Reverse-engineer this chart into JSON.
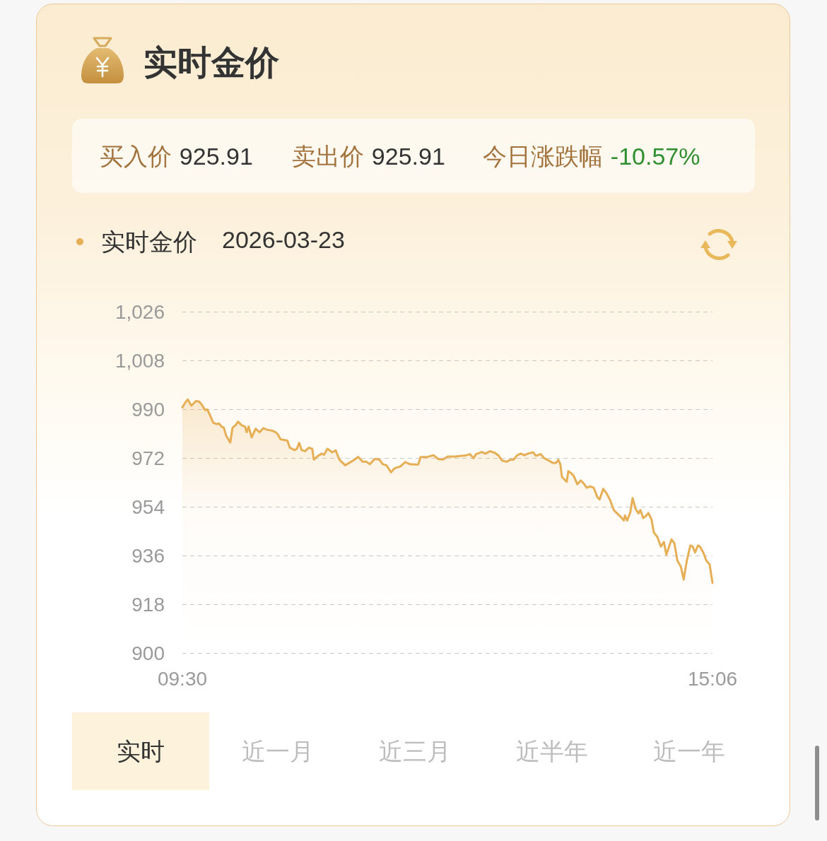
{
  "chart_data": {
    "type": "area",
    "title": "实时金价",
    "subtitle": "2026-03-23",
    "annotations": [
      "买入价 925.91",
      "卖出价 925.91",
      "今日涨跌幅 -10.57%",
      "实时",
      "近一月",
      "近三月",
      "近半年",
      "近一年"
    ],
    "x": [
      9.5,
      9.528,
      9.557,
      9.595,
      9.644,
      9.677,
      9.709,
      9.739,
      9.764,
      9.789,
      9.826,
      9.864,
      9.888,
      9.913,
      9.938,
      9.963,
      10.006,
      10.03,
      10.062,
      10.088,
      10.125,
      10.162,
      10.18,
      10.2,
      10.232,
      10.274,
      10.316,
      10.356,
      10.398,
      10.448,
      10.486,
      10.51,
      10.536,
      10.61,
      10.635,
      10.685,
      10.71,
      10.734,
      10.76,
      10.797,
      10.834,
      10.872,
      10.889,
      10.934,
      10.971,
      10.996,
      11.033,
      11.083,
      11.12,
      11.158,
      11.22,
      11.282,
      11.32,
      11.357,
      11.406,
      11.444,
      11.481,
      11.531,
      11.581,
      11.618,
      11.656,
      11.705,
      11.742,
      11.805,
      11.854,
      11.904,
      11.954,
      11.992,
      12.016,
      12.078,
      12.153,
      12.203,
      12.253,
      12.302,
      12.377,
      12.452,
      12.502,
      12.539,
      12.576,
      12.601,
      12.664,
      12.701,
      12.75,
      12.8,
      12.838,
      12.875,
      12.925,
      12.962,
      13.0,
      13.037,
      13.074,
      13.112,
      13.149,
      13.204,
      13.236,
      13.286,
      13.323,
      13.373,
      13.41,
      13.448,
      13.472,
      13.493,
      13.51,
      13.534,
      13.56,
      13.577,
      13.609,
      13.634,
      13.672,
      13.709,
      13.746,
      13.771,
      13.808,
      13.846,
      13.883,
      13.908,
      13.945,
      13.982,
      14.02,
      14.057,
      14.094,
      14.132,
      14.164,
      14.176,
      14.199,
      14.232,
      14.256,
      14.288,
      14.318,
      14.338,
      14.368,
      14.398,
      14.423,
      14.456,
      14.48,
      14.518,
      14.555,
      14.587,
      14.612,
      14.642,
      14.667,
      14.697,
      14.729,
      14.766,
      14.796,
      14.829,
      14.866,
      14.891,
      14.916,
      14.946,
      14.966,
      15.003,
      15.035,
      15.07,
      15.1
    ],
    "series": [
      {
        "name": "实时金价",
        "color": "#e6ae55",
        "values": [
          990.7,
          992.3,
          993.6,
          991.3,
          993.0,
          992.8,
          991.5,
          989.7,
          989.9,
          988.0,
          985.0,
          984.5,
          984.7,
          983.6,
          983.2,
          980.2,
          977.7,
          983.2,
          984.1,
          985.4,
          984.1,
          983.6,
          981.5,
          983.6,
          979.6,
          982.8,
          981.5,
          983.0,
          982.4,
          982.1,
          981.5,
          980.6,
          978.9,
          978.4,
          975.8,
          974.9,
          975.4,
          977.6,
          974.9,
          974.5,
          975.8,
          975.4,
          971.4,
          972.8,
          973.6,
          973.2,
          975.4,
          974.1,
          974.8,
          971.4,
          969.3,
          970.6,
          971.4,
          972.4,
          970.6,
          970.6,
          969.7,
          971.6,
          971.4,
          969.7,
          969.3,
          966.7,
          968.2,
          968.9,
          970.5,
          969.7,
          969.6,
          969.6,
          972.3,
          972.3,
          973.0,
          971.6,
          971.4,
          972.5,
          972.5,
          972.8,
          973.0,
          973.4,
          971.9,
          973.4,
          974.2,
          973.6,
          974.5,
          973.9,
          973.0,
          971.1,
          970.6,
          971.3,
          971.4,
          973.0,
          973.6,
          973.0,
          973.6,
          974.1,
          972.8,
          973.4,
          971.9,
          971.0,
          970.2,
          970.2,
          971.3,
          969.7,
          965.0,
          964.1,
          963.2,
          967.1,
          966.3,
          965.4,
          962.3,
          963.7,
          962.3,
          961.0,
          961.5,
          961.0,
          957.6,
          956.7,
          960.6,
          958.9,
          956.3,
          952.8,
          951.5,
          950.2,
          948.9,
          950.8,
          948.9,
          951.9,
          957.2,
          953.2,
          951.5,
          952.8,
          949.8,
          950.6,
          951.7,
          949.3,
          944.5,
          942.8,
          939.3,
          941.0,
          936.3,
          939.3,
          941.9,
          940.6,
          934.1,
          931.9,
          927.1,
          934.1,
          939.7,
          939.3,
          937.1,
          939.7,
          939.3,
          937.1,
          934.1,
          932.7,
          925.9
        ]
      }
    ],
    "xlim": [
      9.5,
      15.1
    ],
    "xticks": [
      {
        "value": 9.5,
        "label": "09:30"
      },
      {
        "value": 15.1,
        "label": "15:06"
      }
    ],
    "ylim": [
      900,
      1026
    ],
    "yticks": [
      900,
      918,
      936,
      954,
      972,
      990,
      {
        "value": 1008,
        "label": "1,008"
      },
      {
        "value": 1026,
        "label": "1,026"
      }
    ],
    "grid": "y",
    "legend": "top left",
    "marker": "none",
    "line_style": "solid"
  }
}
